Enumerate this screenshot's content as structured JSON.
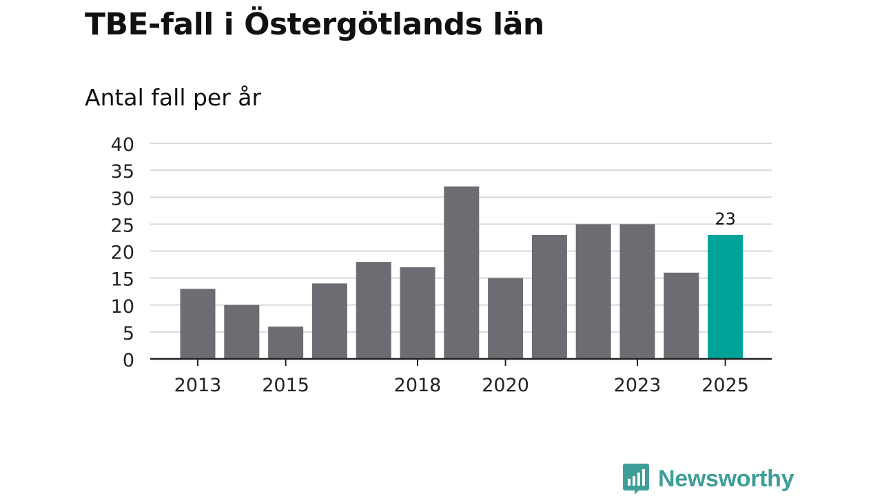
{
  "header": {
    "title": "TBE-fall i Östergötlands län",
    "subtitle": "Antal fall per år"
  },
  "chart_data": {
    "type": "bar",
    "title": "TBE-fall i Östergötlands län",
    "subtitle": "Antal fall per år",
    "xlabel": "",
    "ylabel": "",
    "categories": [
      "2013",
      "2014",
      "2015",
      "2016",
      "2017",
      "2018",
      "2019",
      "2020",
      "2021",
      "2022",
      "2023",
      "2024",
      "2025"
    ],
    "values": [
      13,
      10,
      6,
      14,
      18,
      17,
      32,
      15,
      23,
      25,
      25,
      16,
      23
    ],
    "ylim": [
      0,
      40
    ],
    "yticks": [
      "0",
      "5",
      "10",
      "15",
      "20",
      "25",
      "30",
      "35",
      "40"
    ],
    "xtick_labels": [
      "2013",
      "2015",
      "2018",
      "2020",
      "2023",
      "2025"
    ],
    "highlight": {
      "category": "2025",
      "label": "23"
    },
    "grid": true,
    "colors": {
      "bar": "#6d6c72",
      "highlight": "#00a398",
      "grid": "#d9d9d9",
      "axis": "#222222"
    }
  },
  "brand": {
    "name": "Newsworthy",
    "color": "#3f9e97"
  }
}
